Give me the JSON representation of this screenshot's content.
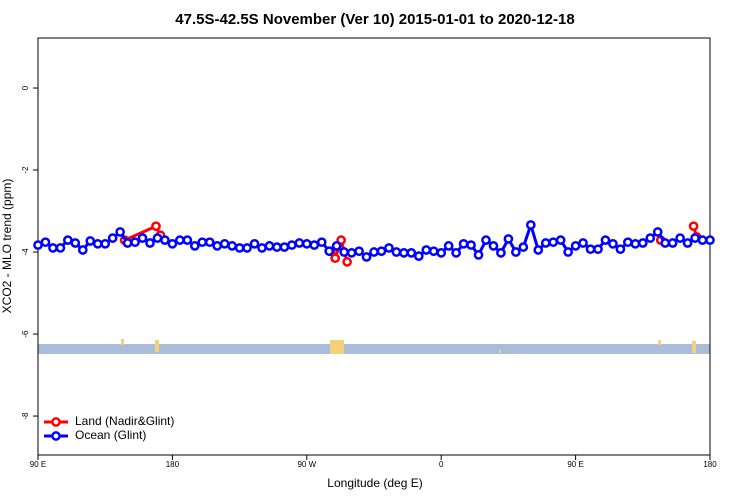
{
  "chart_data": {
    "type": "line",
    "title": "47.5S-42.5S November (Ver 10)   2015-01-01 to 2020-12-18",
    "x_label": "Longitude (deg E)",
    "y_label": "XCO2 - MLO trend (ppm)",
    "xlim": [
      90,
      540
    ],
    "ylim": [
      -8.95,
      1.22
    ],
    "xticks": [
      {
        "value": 90,
        "label": "90 E"
      },
      180,
      {
        "value": 270,
        "label": "90 W"
      },
      {
        "value": 360,
        "label": "0"
      },
      {
        "value": 450,
        "label": "90 E"
      },
      {
        "value": 540,
        "label": "180"
      }
    ],
    "yticks": [
      0,
      -2,
      -4,
      -6,
      -8
    ],
    "legend": "bottom-left",
    "series": [
      {
        "name": "Land (Nadir&Glint)",
        "color": "#ff0000",
        "x": [
          148,
          169,
          172,
          null,
          286,
          289,
          293,
          297,
          null,
          507,
          null,
          529,
          531
        ],
        "values": [
          -3.71,
          -3.37,
          -3.59,
          null,
          -3.98,
          -4.15,
          -3.71,
          -4.24,
          null,
          -3.71,
          null,
          -3.37,
          -3.63
        ]
      },
      {
        "name": "Ocean (Glint)",
        "color": "#0000ff",
        "x": [
          90,
          95,
          100,
          105,
          110,
          115,
          120,
          125,
          130,
          135,
          140,
          145,
          150,
          155,
          160,
          165,
          170,
          175,
          180,
          185,
          190,
          195,
          200,
          205,
          210,
          215,
          220,
          225,
          230,
          235,
          240,
          245,
          250,
          255,
          260,
          265,
          270,
          275,
          280,
          285,
          290,
          295,
          300,
          305,
          310,
          315,
          320,
          325,
          330,
          335,
          340,
          345,
          350,
          355,
          360,
          365,
          370,
          375,
          380,
          385,
          390,
          395,
          400,
          405,
          410,
          415,
          420,
          425,
          430,
          435,
          440,
          445,
          450,
          455,
          460,
          465,
          470,
          475,
          480,
          485,
          490,
          495,
          500,
          505,
          510,
          515,
          520,
          525,
          530,
          535,
          540
        ],
        "values": [
          -3.83,
          -3.76,
          -3.9,
          -3.9,
          -3.71,
          -3.78,
          -3.95,
          -3.73,
          -3.8,
          -3.8,
          -3.66,
          -3.51,
          -3.78,
          -3.76,
          -3.66,
          -3.78,
          -3.66,
          -3.71,
          -3.8,
          -3.71,
          -3.71,
          -3.85,
          -3.76,
          -3.76,
          -3.85,
          -3.8,
          -3.85,
          -3.9,
          -3.9,
          -3.8,
          -3.9,
          -3.85,
          -3.88,
          -3.88,
          -3.83,
          -3.78,
          -3.8,
          -3.83,
          -3.76,
          -3.98,
          -3.85,
          -4.0,
          -4.02,
          -3.98,
          -4.12,
          -4.0,
          -3.98,
          -3.9,
          -4.0,
          -4.02,
          -4.02,
          -4.1,
          -3.95,
          -3.98,
          -4.02,
          -3.85,
          -4.02,
          -3.8,
          -3.83,
          -4.07,
          -3.71,
          -3.85,
          -4.02,
          -3.68,
          -4.0,
          -3.88,
          -3.34,
          -3.95,
          -3.78,
          -3.76,
          -3.71,
          -4.0,
          -3.85,
          -3.78,
          -3.93,
          -3.93,
          -3.71,
          -3.8,
          -3.93,
          -3.76,
          -3.8,
          -3.78,
          -3.66,
          -3.51,
          -3.78,
          -3.78,
          -3.66,
          -3.78,
          -3.66,
          -3.71,
          -3.71
        ]
      }
    ]
  }
}
